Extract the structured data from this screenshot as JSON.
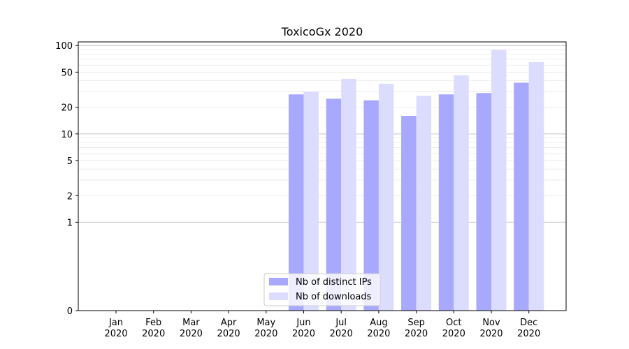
{
  "chart_data": {
    "type": "bar",
    "title": "ToxicoGx 2020",
    "xlabel": "",
    "ylabel": "",
    "yscale": "symlog",
    "ylim": [
      0,
      110
    ],
    "y_ticks": [
      0,
      1,
      2,
      5,
      10,
      20,
      50,
      100
    ],
    "categories": [
      "Jan\n2020",
      "Feb\n2020",
      "Mar\n2020",
      "Apr\n2020",
      "May\n2020",
      "Jun\n2020",
      "Jul\n2020",
      "Aug\n2020",
      "Sep\n2020",
      "Oct\n2020",
      "Nov\n2020",
      "Dec\n2020"
    ],
    "series": [
      {
        "name": "Nb of distinct IPs",
        "color": "#a8a8ff",
        "values": [
          0,
          0,
          0,
          0,
          0,
          28,
          25,
          24,
          16,
          28,
          29,
          38
        ]
      },
      {
        "name": "Nb of downloads",
        "color": "#dcdcff",
        "values": [
          0,
          0,
          0,
          0,
          0,
          30,
          42,
          37,
          27,
          46,
          89,
          65
        ]
      }
    ],
    "grid": true,
    "legend_position": "lower-center"
  }
}
